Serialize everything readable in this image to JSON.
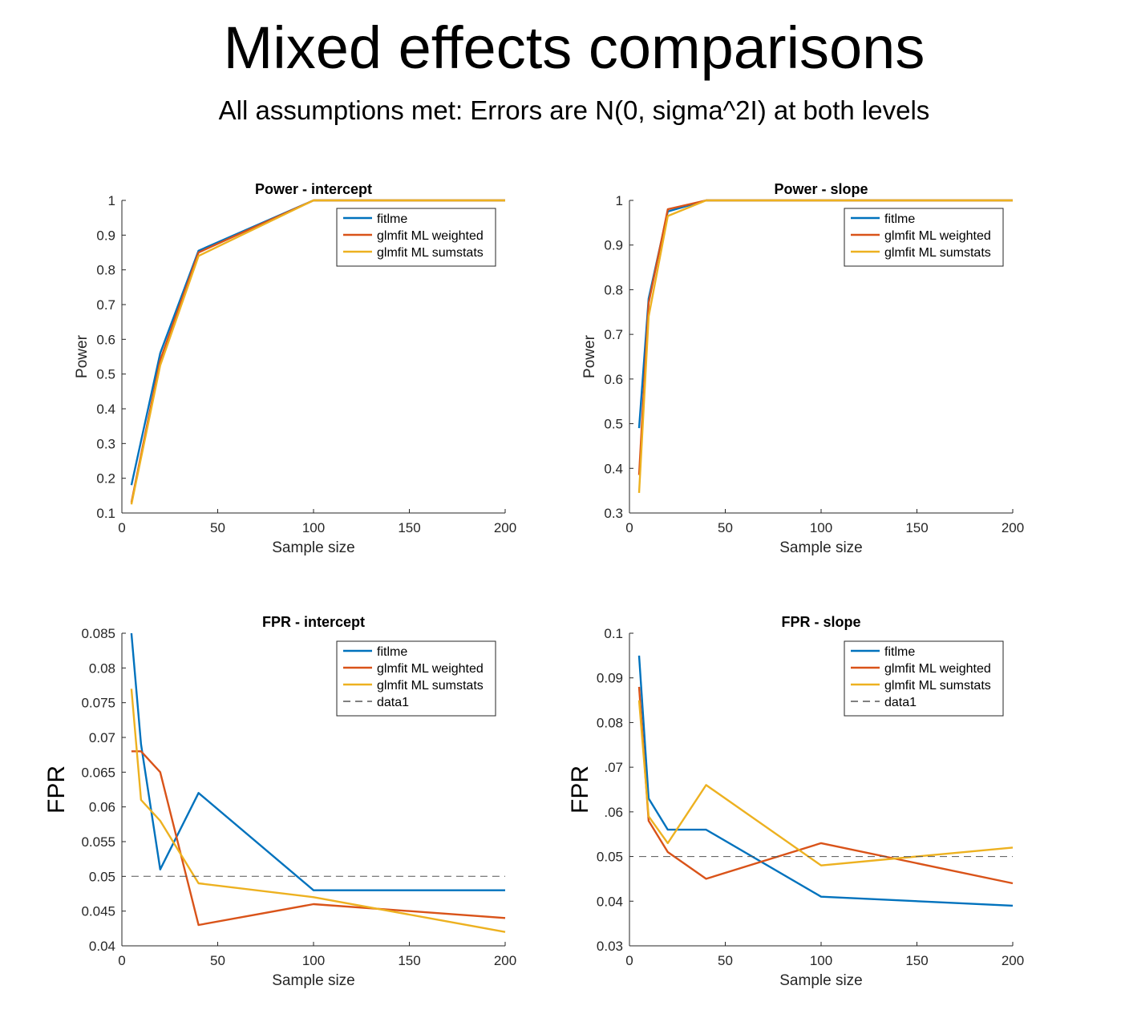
{
  "page": {
    "title": "Mixed effects comparisons",
    "subtitle": "All assumptions met: Errors are N(0, sigma^2I) at both levels"
  },
  "colors": {
    "fitlme": "#0072BD",
    "weighted": "#D95319",
    "sumstats": "#EDB120",
    "reference": "#000000"
  },
  "chart_data": [
    {
      "type": "line",
      "title": "Power - intercept",
      "xlabel": "Sample size",
      "ylabel": "Power",
      "xlim": [
        0,
        200
      ],
      "ylim": [
        0.1,
        1
      ],
      "xticks": [
        0,
        50,
        100,
        150,
        200
      ],
      "yticks": [
        0.1,
        0.2,
        0.3,
        0.4,
        0.5,
        0.6,
        0.7,
        0.8,
        0.9,
        1
      ],
      "ytick_labels": [
        "0.1",
        "0.2",
        "0.3",
        "0.4",
        "0.5",
        "0.6",
        "0.7",
        "0.8",
        "0.9",
        "1"
      ],
      "legend": "top-right",
      "x": [
        5,
        20,
        40,
        100,
        200
      ],
      "series": [
        {
          "name": "fitlme",
          "color": "#0072BD",
          "dashed": false,
          "values": [
            0.18,
            0.56,
            0.855,
            1.0,
            1.0
          ]
        },
        {
          "name": "glmfit ML weighted",
          "color": "#D95319",
          "dashed": false,
          "values": [
            0.13,
            0.54,
            0.85,
            1.0,
            1.0
          ]
        },
        {
          "name": "glmfit ML sumstats",
          "color": "#EDB120",
          "dashed": false,
          "values": [
            0.125,
            0.525,
            0.84,
            1.0,
            1.0
          ]
        }
      ]
    },
    {
      "type": "line",
      "title": "Power - slope",
      "xlabel": "Sample size",
      "ylabel": "Power",
      "xlim": [
        0,
        200
      ],
      "ylim": [
        0.3,
        1
      ],
      "xticks": [
        0,
        50,
        100,
        150,
        200
      ],
      "yticks": [
        0.3,
        0.4,
        0.5,
        0.6,
        0.7,
        0.8,
        0.9,
        1
      ],
      "ytick_labels": [
        "0.3",
        "0.4",
        "0.5",
        "0.6",
        "0.7",
        "0.8",
        "0.9",
        "1"
      ],
      "legend": "top-right",
      "x": [
        5,
        10,
        20,
        40,
        100,
        200
      ],
      "series": [
        {
          "name": "fitlme",
          "color": "#0072BD",
          "dashed": false,
          "values": [
            0.49,
            0.78,
            0.975,
            1.0,
            1.0,
            1.0
          ]
        },
        {
          "name": "glmfit ML weighted",
          "color": "#D95319",
          "dashed": false,
          "values": [
            0.385,
            0.77,
            0.98,
            1.0,
            1.0,
            1.0
          ]
        },
        {
          "name": "glmfit ML sumstats",
          "color": "#EDB120",
          "dashed": false,
          "values": [
            0.345,
            0.74,
            0.965,
            1.0,
            1.0,
            1.0
          ]
        }
      ]
    },
    {
      "type": "line",
      "title": "FPR - intercept",
      "xlabel": "Sample size",
      "ylabel": "FPR",
      "xlim": [
        0,
        200
      ],
      "ylim": [
        0.04,
        0.085
      ],
      "xticks": [
        0,
        50,
        100,
        150,
        200
      ],
      "yticks": [
        0.04,
        0.045,
        0.05,
        0.055,
        0.06,
        0.065,
        0.07,
        0.075,
        0.08,
        0.085
      ],
      "ytick_labels": [
        "0.04",
        "0.045",
        "0.05",
        "0.055",
        "0.06",
        "0.065",
        "0.07",
        "0.075",
        "0.08",
        "0.085"
      ],
      "legend": "top-right",
      "series": [
        {
          "name": "fitlme",
          "color": "#0072BD",
          "dashed": false,
          "x": [
            5,
            10,
            20,
            40,
            100,
            200
          ],
          "values": [
            0.085,
            0.069,
            0.051,
            0.062,
            0.048,
            0.048
          ]
        },
        {
          "name": "glmfit ML weighted",
          "color": "#D95319",
          "dashed": false,
          "x": [
            5,
            10,
            20,
            40,
            100,
            200
          ],
          "values": [
            0.068,
            0.068,
            0.065,
            0.043,
            0.046,
            0.044
          ]
        },
        {
          "name": "glmfit ML sumstats",
          "color": "#EDB120",
          "dashed": false,
          "x": [
            5,
            10,
            20,
            40,
            100,
            200
          ],
          "values": [
            0.077,
            0.061,
            0.058,
            0.049,
            0.047,
            0.042
          ]
        },
        {
          "name": "data1",
          "color": "#000000",
          "dashed": true,
          "x": [
            5,
            200
          ],
          "values": [
            0.05,
            0.05
          ]
        }
      ]
    },
    {
      "type": "line",
      "title": "FPR - slope",
      "xlabel": "Sample size",
      "ylabel": "FPR",
      "xlim": [
        0,
        200
      ],
      "ylim": [
        0.03,
        0.1
      ],
      "xticks": [
        0,
        50,
        100,
        150,
        200
      ],
      "yticks": [
        0.03,
        0.04,
        0.05,
        0.06,
        0.07,
        0.08,
        0.09,
        0.1
      ],
      "ytick_labels": [
        "0.03",
        "0.04",
        "0.05",
        ".06",
        ".07",
        "0.08",
        "0.09",
        "0.1"
      ],
      "legend": "top-right",
      "series": [
        {
          "name": "fitlme",
          "color": "#0072BD",
          "dashed": false,
          "x": [
            5,
            10,
            20,
            40,
            100,
            200
          ],
          "values": [
            0.095,
            0.063,
            0.056,
            0.056,
            0.041,
            0.039
          ]
        },
        {
          "name": "glmfit ML weighted",
          "color": "#D95319",
          "dashed": false,
          "x": [
            5,
            10,
            20,
            40,
            100,
            200
          ],
          "values": [
            0.088,
            0.058,
            0.051,
            0.045,
            0.053,
            0.044
          ]
        },
        {
          "name": "glmfit ML sumstats",
          "color": "#EDB120",
          "dashed": false,
          "x": [
            5,
            10,
            20,
            40,
            100,
            200
          ],
          "values": [
            0.085,
            0.059,
            0.053,
            0.066,
            0.048,
            0.052
          ]
        },
        {
          "name": "data1",
          "color": "#000000",
          "dashed": true,
          "x": [
            5,
            200
          ],
          "values": [
            0.05,
            0.05
          ]
        }
      ]
    }
  ]
}
